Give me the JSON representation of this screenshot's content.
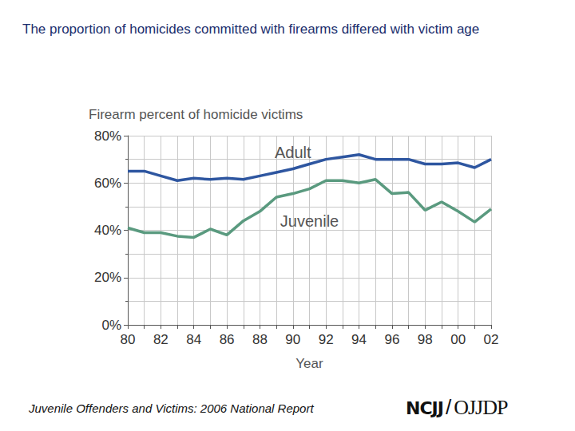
{
  "slide_title": "The proportion of homicides committed with firearms differed with victim age",
  "footer": "Juvenile Offenders and Victims: 2006 National Report",
  "logo": [
    "NCJJ",
    "/",
    "OJJDP"
  ],
  "chart_data": {
    "type": "line",
    "title": "Firearm percent of homicide victims",
    "x_label": "Year",
    "categories": [
      "80",
      null,
      "82",
      null,
      "84",
      null,
      "86",
      null,
      "88",
      null,
      "90",
      null,
      "92",
      null,
      "94",
      null,
      "96",
      null,
      "98",
      null,
      "00",
      null,
      "02"
    ],
    "series": [
      {
        "name": "Adult",
        "color": "#2e56a0",
        "values": [
          65,
          65,
          63,
          61,
          62,
          61.5,
          62,
          61.5,
          63,
          64.5,
          66,
          68,
          70,
          71,
          72,
          70,
          70,
          70,
          68,
          68,
          68.5,
          66.5,
          70
        ]
      },
      {
        "name": "Juvenile",
        "color": "#5a9a7f",
        "values": [
          41,
          39,
          39,
          37.5,
          37,
          40.5,
          38,
          44,
          48,
          54,
          55.5,
          57.5,
          61,
          61,
          60,
          61.5,
          55.5,
          56,
          48.5,
          52,
          48,
          43.5,
          49
        ]
      }
    ],
    "ylim": [
      0,
      80
    ],
    "yticks": [
      {
        "value": 0,
        "label": "0%"
      },
      {
        "value": 20,
        "label": "20%"
      },
      {
        "value": 40,
        "label": "40%"
      },
      {
        "value": 60,
        "label": "60%"
      },
      {
        "value": 80,
        "label": "80%"
      }
    ],
    "grid": true
  }
}
